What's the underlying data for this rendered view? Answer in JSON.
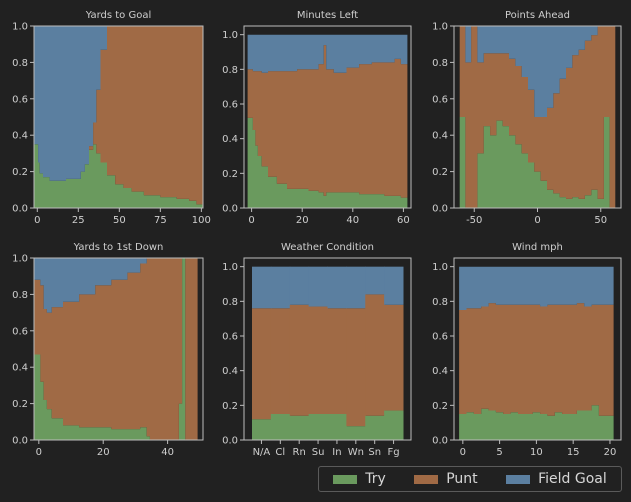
{
  "colors": {
    "background": "#212121",
    "axis": "#bdbdbd",
    "text": "#cfcfcf",
    "Try": "#6a9a5e",
    "Punt": "#a06a45",
    "Field Goal": "#5b7fa0"
  },
  "legend": {
    "items": [
      {
        "name": "Try",
        "color": "#6a9a5e"
      },
      {
        "name": "Punt",
        "color": "#a06a45"
      },
      {
        "name": "Field Goal",
        "color": "#5b7fa0"
      }
    ]
  },
  "chart_data": [
    {
      "type": "area",
      "title": "Yards to Goal",
      "xlim": [
        -2,
        101
      ],
      "ylim": [
        0,
        1
      ],
      "xticks": [
        0,
        25,
        50,
        75,
        100
      ],
      "yticks": [
        0.0,
        0.2,
        0.4,
        0.6,
        0.8,
        1.0
      ],
      "x": [
        0,
        1,
        2,
        5,
        10,
        15,
        20,
        25,
        28,
        30,
        33,
        35,
        37,
        40,
        45,
        50,
        55,
        60,
        70,
        80,
        90,
        95,
        99
      ],
      "try": [
        0.35,
        0.25,
        0.19,
        0.17,
        0.15,
        0.15,
        0.16,
        0.16,
        0.2,
        0.24,
        0.32,
        0.35,
        0.3,
        0.25,
        0.18,
        0.13,
        0.11,
        0.09,
        0.07,
        0.06,
        0.05,
        0.04,
        0.02
      ],
      "punt": [
        0.0,
        0.0,
        0.0,
        0.0,
        0.0,
        0.0,
        0.0,
        0.0,
        0.0,
        0.0,
        0.02,
        0.12,
        0.35,
        0.62,
        0.82,
        0.87,
        0.89,
        0.91,
        0.93,
        0.94,
        0.95,
        0.96,
        0.98
      ],
      "fg": [
        0.65,
        0.75,
        0.81,
        0.83,
        0.85,
        0.85,
        0.84,
        0.84,
        0.8,
        0.76,
        0.66,
        0.53,
        0.35,
        0.13,
        0.0,
        0.0,
        0.0,
        0.0,
        0.0,
        0.0,
        0.0,
        0.0,
        0.0
      ]
    },
    {
      "type": "area",
      "title": "Minutes Left",
      "xlim": [
        -3,
        63
      ],
      "ylim": [
        0,
        1.05
      ],
      "xticks": [
        0,
        20,
        40,
        60
      ],
      "yticks": [
        0.0,
        0.2,
        0.4,
        0.6,
        0.8,
        1.0
      ],
      "x": [
        0,
        1,
        2,
        3,
        5,
        8,
        12,
        16,
        20,
        25,
        28,
        29,
        30,
        35,
        40,
        45,
        50,
        55,
        58,
        60
      ],
      "try": [
        0.52,
        0.45,
        0.36,
        0.3,
        0.24,
        0.18,
        0.14,
        0.11,
        0.11,
        0.1,
        0.09,
        0.07,
        0.09,
        0.09,
        0.09,
        0.08,
        0.08,
        0.07,
        0.07,
        0.06
      ],
      "punt": [
        0.28,
        0.34,
        0.43,
        0.49,
        0.54,
        0.61,
        0.65,
        0.68,
        0.69,
        0.7,
        0.74,
        0.87,
        0.71,
        0.69,
        0.72,
        0.75,
        0.76,
        0.77,
        0.79,
        0.77
      ],
      "fg": [
        0.2,
        0.21,
        0.21,
        0.21,
        0.22,
        0.21,
        0.21,
        0.21,
        0.2,
        0.2,
        0.17,
        0.06,
        0.2,
        0.22,
        0.19,
        0.17,
        0.16,
        0.16,
        0.14,
        0.17
      ]
    },
    {
      "type": "area",
      "title": "Points Ahead",
      "xlim": [
        -66,
        66
      ],
      "ylim": [
        0,
        1
      ],
      "xticks": [
        -50,
        0,
        50
      ],
      "yticks": [
        0.0,
        0.2,
        0.4,
        0.6,
        0.8,
        1.0
      ],
      "x": [
        -59,
        -55,
        -50,
        -45,
        -40,
        -35,
        -30,
        -25,
        -20,
        -15,
        -10,
        -5,
        0,
        5,
        10,
        15,
        20,
        25,
        30,
        35,
        40,
        45,
        50,
        55,
        59
      ],
      "try": [
        0.5,
        0.0,
        0.0,
        0.3,
        0.45,
        0.4,
        0.48,
        0.45,
        0.4,
        0.35,
        0.3,
        0.25,
        0.2,
        0.15,
        0.1,
        0.08,
        0.06,
        0.05,
        0.06,
        0.05,
        0.07,
        0.1,
        0.05,
        0.5,
        0.0
      ],
      "punt": [
        0.5,
        0.8,
        1.0,
        0.5,
        0.4,
        0.45,
        0.37,
        0.4,
        0.42,
        0.43,
        0.42,
        0.4,
        0.3,
        0.35,
        0.45,
        0.55,
        0.65,
        0.72,
        0.78,
        0.82,
        0.85,
        0.85,
        0.95,
        0.5,
        1.0
      ],
      "fg": [
        0.0,
        0.2,
        0.0,
        0.2,
        0.15,
        0.15,
        0.15,
        0.15,
        0.18,
        0.22,
        0.28,
        0.35,
        0.5,
        0.5,
        0.45,
        0.37,
        0.29,
        0.23,
        0.16,
        0.13,
        0.08,
        0.05,
        0.0,
        0.0,
        0.0
      ]
    },
    {
      "type": "area",
      "title": "Yards to 1st Down",
      "xlim": [
        -1.5,
        51
      ],
      "ylim": [
        0,
        1
      ],
      "xticks": [
        0,
        20,
        40
      ],
      "yticks": [
        0.0,
        0.2,
        0.4,
        0.6,
        0.8,
        1.0
      ],
      "x": [
        0,
        1,
        2,
        3,
        5,
        10,
        15,
        20,
        25,
        30,
        33,
        34,
        35,
        40,
        43,
        44,
        45,
        46,
        48
      ],
      "try": [
        0.47,
        0.32,
        0.22,
        0.17,
        0.12,
        0.08,
        0.07,
        0.07,
        0.06,
        0.06,
        0.07,
        0.02,
        0.0,
        0.0,
        0.0,
        0.2,
        1.0,
        0.0,
        0.0
      ],
      "punt": [
        0.41,
        0.53,
        0.5,
        0.53,
        0.61,
        0.68,
        0.73,
        0.78,
        0.82,
        0.86,
        0.9,
        0.98,
        1.0,
        1.0,
        1.0,
        0.8,
        0.0,
        1.0,
        1.0
      ],
      "fg": [
        0.12,
        0.15,
        0.28,
        0.3,
        0.27,
        0.24,
        0.2,
        0.15,
        0.12,
        0.08,
        0.03,
        0.0,
        0.0,
        0.0,
        0.0,
        0.0,
        0.0,
        0.0,
        0.0
      ]
    },
    {
      "type": "bar",
      "title": "Weather Condition",
      "ylim": [
        0,
        1.05
      ],
      "categories": [
        "N/A",
        "Cl",
        "Rn",
        "Su",
        "In",
        "Wn",
        "Sn",
        "Fg"
      ],
      "yticks": [
        0.0,
        0.2,
        0.4,
        0.6,
        0.8,
        1.0
      ],
      "try": [
        0.12,
        0.15,
        0.14,
        0.15,
        0.15,
        0.08,
        0.14,
        0.17
      ],
      "punt": [
        0.64,
        0.61,
        0.64,
        0.62,
        0.61,
        0.68,
        0.7,
        0.61
      ],
      "fg": [
        0.24,
        0.24,
        0.22,
        0.23,
        0.24,
        0.24,
        0.16,
        0.22
      ]
    },
    {
      "type": "area",
      "title": "Wind mph",
      "xlim": [
        -1.2,
        21.5
      ],
      "ylim": [
        0,
        1.05
      ],
      "xticks": [
        0,
        5,
        10,
        15,
        20
      ],
      "yticks": [
        0.0,
        0.2,
        0.4,
        0.6,
        0.8,
        1.0
      ],
      "x": [
        0,
        1,
        2,
        3,
        4,
        5,
        6,
        7,
        8,
        9,
        10,
        11,
        12,
        13,
        14,
        15,
        16,
        17,
        18,
        19,
        20
      ],
      "try": [
        0.15,
        0.16,
        0.15,
        0.18,
        0.17,
        0.16,
        0.15,
        0.16,
        0.15,
        0.15,
        0.16,
        0.15,
        0.14,
        0.16,
        0.15,
        0.15,
        0.17,
        0.17,
        0.2,
        0.14,
        0.14
      ],
      "punt": [
        0.6,
        0.6,
        0.61,
        0.59,
        0.62,
        0.62,
        0.63,
        0.62,
        0.63,
        0.63,
        0.62,
        0.62,
        0.64,
        0.62,
        0.63,
        0.63,
        0.62,
        0.6,
        0.58,
        0.64,
        0.64
      ],
      "fg": [
        0.25,
        0.24,
        0.24,
        0.23,
        0.21,
        0.22,
        0.22,
        0.22,
        0.22,
        0.22,
        0.22,
        0.23,
        0.22,
        0.22,
        0.22,
        0.22,
        0.21,
        0.23,
        0.22,
        0.22,
        0.22
      ]
    }
  ]
}
